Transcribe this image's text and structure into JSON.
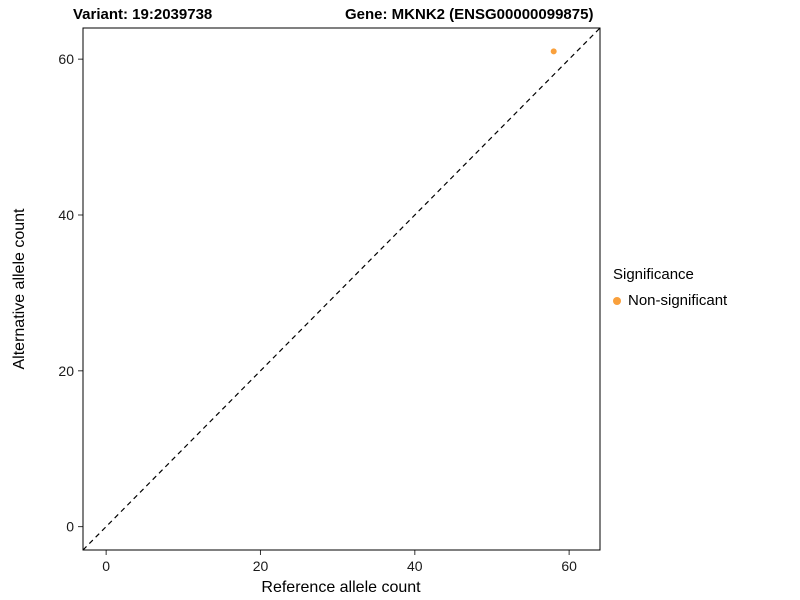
{
  "chart_data": {
    "type": "scatter",
    "titles": {
      "left": "Variant: 19:2039738",
      "right": "Gene: MKNK2 (ENSG00000099875)"
    },
    "xlabel": "Reference allele count",
    "ylabel": "Alternative allele count",
    "xlim": [
      -3,
      64
    ],
    "ylim": [
      -3,
      64
    ],
    "xticks": [
      0,
      20,
      40,
      60
    ],
    "yticks": [
      0,
      20,
      40,
      60
    ],
    "grid": false,
    "points": [
      {
        "x": 58,
        "y": 61,
        "series": "Non-significant"
      }
    ],
    "identity_line": {
      "style": "dashed",
      "from": [
        -3,
        -3
      ],
      "to": [
        64,
        64
      ]
    },
    "legend": {
      "title": "Significance",
      "position": "right",
      "entries": [
        {
          "label": "Non-significant",
          "color": "#F9A03C"
        }
      ]
    },
    "colors": {
      "point": "#F9A03C",
      "line": "#000000",
      "panel_border": "#000000",
      "tick": "#333333",
      "text": "#1a1a1a"
    }
  }
}
